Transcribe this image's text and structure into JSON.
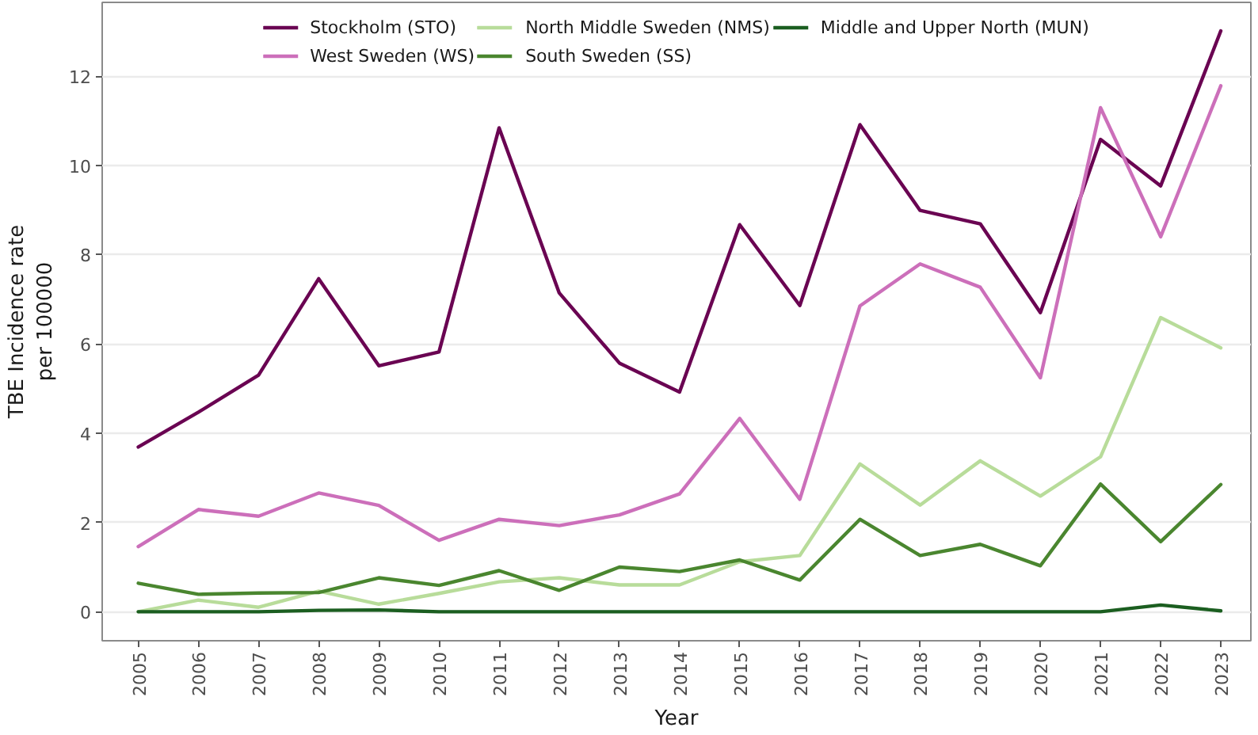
{
  "chart_data": {
    "type": "line",
    "xlabel": "Year",
    "ylabel": "TBE Incidence rate\nper 100000",
    "categories": [
      "2005",
      "2006",
      "2007",
      "2008",
      "2009",
      "2010",
      "2011",
      "2012",
      "2013",
      "2014",
      "2015",
      "2016",
      "2017",
      "2018",
      "2019",
      "2020",
      "2021",
      "2022",
      "2023"
    ],
    "series": [
      {
        "name": "Stockholm (STO)",
        "color": "#6a0452",
        "values": [
          3.69,
          4.47,
          5.3,
          7.46,
          5.51,
          5.82,
          10.84,
          7.14,
          5.57,
          4.92,
          8.67,
          6.86,
          10.91,
          8.99,
          8.69,
          6.7,
          10.58,
          9.54,
          13.01
        ]
      },
      {
        "name": "West Sweden (WS)",
        "color": "#cc6fba",
        "values": [
          1.46,
          2.29,
          2.14,
          2.66,
          2.38,
          1.6,
          2.07,
          1.93,
          2.17,
          2.64,
          4.33,
          2.52,
          6.85,
          7.79,
          7.27,
          5.24,
          11.29,
          8.4,
          11.78
        ]
      },
      {
        "name": "North Middle Sweden (NMS)",
        "color": "#b8dc9a",
        "values": [
          0.0,
          0.26,
          0.1,
          0.46,
          0.17,
          0.41,
          0.67,
          0.76,
          0.6,
          0.6,
          1.12,
          1.26,
          3.31,
          2.39,
          3.38,
          2.59,
          3.47,
          6.59,
          5.91
        ]
      },
      {
        "name": "South Sweden (SS)",
        "color": "#4a862f",
        "values": [
          0.64,
          0.39,
          0.42,
          0.43,
          0.76,
          0.59,
          0.92,
          0.48,
          1.0,
          0.9,
          1.16,
          0.71,
          2.07,
          1.26,
          1.51,
          1.03,
          2.86,
          1.57,
          2.85
        ]
      },
      {
        "name": "Middle and Upper North (MUN)",
        "color": "#1b5e20",
        "values": [
          0,
          0,
          0,
          0.03,
          0.04,
          0,
          0,
          0,
          0,
          0,
          0,
          0,
          0,
          0,
          0,
          0,
          0,
          0.15,
          0.02
        ]
      }
    ],
    "ylim": [
      -0.65,
      13.65
    ],
    "yticks": [
      0,
      2,
      4,
      6,
      8,
      10,
      12
    ],
    "grid": "y",
    "legend": "top"
  }
}
